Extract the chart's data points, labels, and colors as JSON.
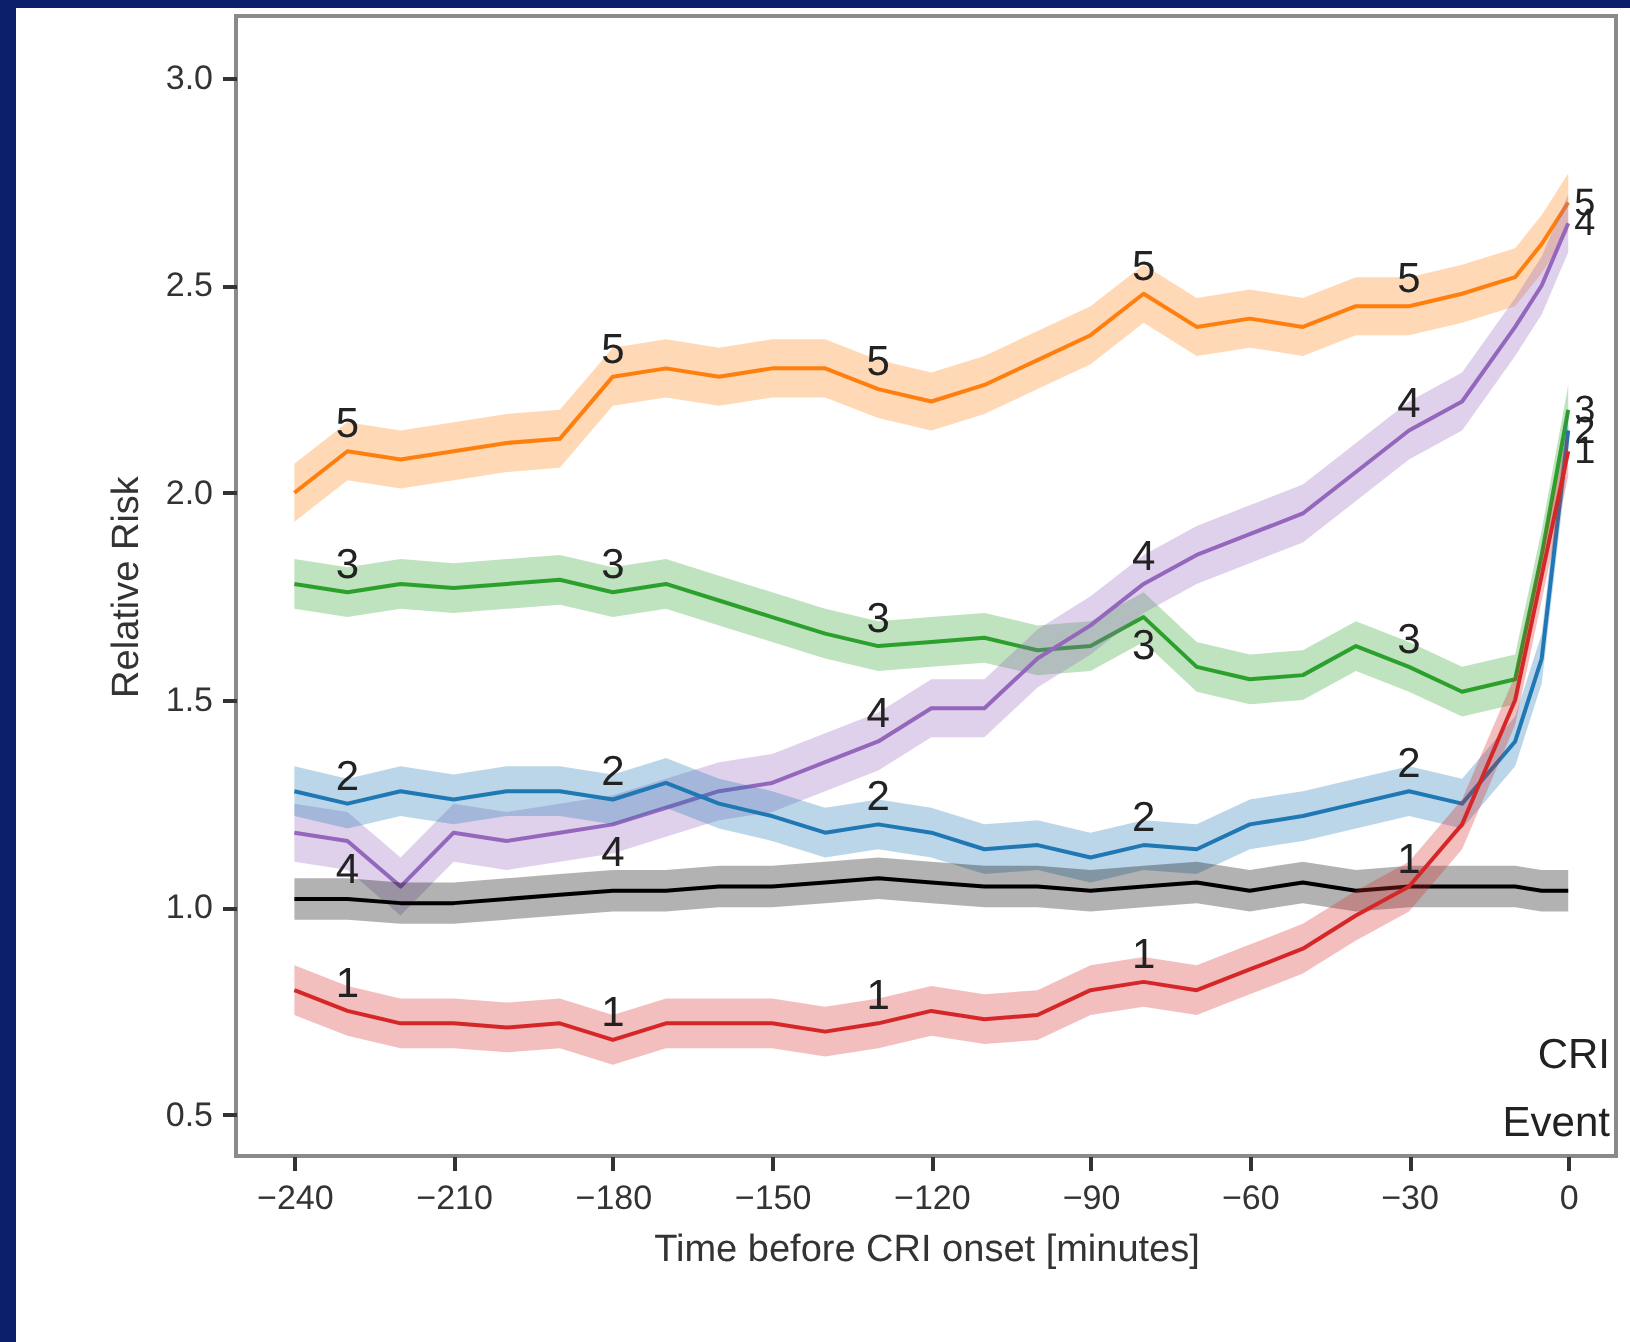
{
  "chart_data": {
    "type": "line",
    "xlabel": "Time before CRI onset [minutes]",
    "ylabel": "Relative Risk",
    "annotations": [
      "CRI Event"
    ],
    "x": [
      -240,
      -230,
      -220,
      -210,
      -200,
      -190,
      -180,
      -170,
      -160,
      -150,
      -140,
      -130,
      -120,
      -110,
      -100,
      -90,
      -80,
      -70,
      -60,
      -50,
      -40,
      -30,
      -20,
      -10,
      -5,
      0
    ],
    "xlim": [
      -251,
      9
    ],
    "xticks": [
      {
        "value": -240,
        "label": "−240"
      },
      {
        "value": -210,
        "label": "−210"
      },
      {
        "value": -180,
        "label": "−180"
      },
      {
        "value": -150,
        "label": "−150"
      },
      {
        "value": -120,
        "label": "−120"
      },
      {
        "value": -90,
        "label": "−90"
      },
      {
        "value": -60,
        "label": "−60"
      },
      {
        "value": -30,
        "label": "−30"
      },
      0
    ],
    "ylim": [
      0.4,
      3.15
    ],
    "yticks": [
      0.5,
      {
        "value": 1,
        "label": "1.0"
      },
      1.5,
      {
        "value": 2,
        "label": "2.0"
      },
      2.5,
      {
        "value": 3,
        "label": "3.0"
      }
    ],
    "grid": false,
    "series": [
      {
        "name": "5",
        "color": "#ff7f0e",
        "values": [
          2.0,
          2.1,
          2.08,
          2.1,
          2.12,
          2.13,
          2.28,
          2.3,
          2.28,
          2.3,
          2.3,
          2.25,
          2.22,
          2.26,
          2.32,
          2.38,
          2.48,
          2.4,
          2.42,
          2.4,
          2.45,
          2.45,
          2.48,
          2.52,
          2.6,
          2.7
        ],
        "lower": [
          1.93,
          2.03,
          2.01,
          2.03,
          2.05,
          2.06,
          2.21,
          2.23,
          2.21,
          2.23,
          2.23,
          2.18,
          2.15,
          2.19,
          2.25,
          2.31,
          2.41,
          2.33,
          2.35,
          2.33,
          2.38,
          2.38,
          2.41,
          2.45,
          2.53,
          2.63
        ],
        "upper": [
          2.07,
          2.17,
          2.15,
          2.17,
          2.19,
          2.2,
          2.35,
          2.37,
          2.35,
          2.37,
          2.37,
          2.32,
          2.29,
          2.33,
          2.39,
          2.45,
          2.55,
          2.47,
          2.49,
          2.47,
          2.52,
          2.52,
          2.55,
          2.59,
          2.67,
          2.77
        ]
      },
      {
        "name": "3",
        "color": "#2ca02c",
        "values": [
          1.78,
          1.76,
          1.78,
          1.77,
          1.78,
          1.79,
          1.76,
          1.78,
          1.74,
          1.7,
          1.66,
          1.63,
          1.64,
          1.65,
          1.62,
          1.63,
          1.7,
          1.58,
          1.55,
          1.56,
          1.63,
          1.58,
          1.52,
          1.55,
          1.85,
          2.2
        ],
        "lower": [
          1.72,
          1.7,
          1.72,
          1.71,
          1.72,
          1.73,
          1.7,
          1.72,
          1.68,
          1.64,
          1.6,
          1.57,
          1.58,
          1.59,
          1.56,
          1.57,
          1.64,
          1.52,
          1.49,
          1.5,
          1.57,
          1.52,
          1.46,
          1.49,
          1.79,
          2.14
        ],
        "upper": [
          1.84,
          1.82,
          1.84,
          1.83,
          1.84,
          1.85,
          1.82,
          1.84,
          1.8,
          1.76,
          1.72,
          1.69,
          1.7,
          1.71,
          1.68,
          1.69,
          1.76,
          1.64,
          1.61,
          1.62,
          1.69,
          1.64,
          1.58,
          1.61,
          1.91,
          2.26
        ]
      },
      {
        "name": "4",
        "color": "#9467bd",
        "values": [
          1.18,
          1.16,
          1.05,
          1.18,
          1.16,
          1.18,
          1.2,
          1.24,
          1.28,
          1.3,
          1.35,
          1.4,
          1.48,
          1.48,
          1.6,
          1.68,
          1.78,
          1.85,
          1.9,
          1.95,
          2.05,
          2.15,
          2.22,
          2.4,
          2.5,
          2.65
        ],
        "lower": [
          1.11,
          1.09,
          0.98,
          1.11,
          1.09,
          1.11,
          1.13,
          1.17,
          1.21,
          1.23,
          1.28,
          1.33,
          1.41,
          1.41,
          1.53,
          1.61,
          1.71,
          1.78,
          1.83,
          1.88,
          1.98,
          2.08,
          2.15,
          2.33,
          2.43,
          2.58
        ],
        "upper": [
          1.25,
          1.23,
          1.12,
          1.25,
          1.23,
          1.25,
          1.27,
          1.31,
          1.35,
          1.37,
          1.42,
          1.47,
          1.55,
          1.55,
          1.67,
          1.75,
          1.85,
          1.92,
          1.97,
          2.02,
          2.12,
          2.22,
          2.29,
          2.47,
          2.57,
          2.72
        ]
      },
      {
        "name": "2",
        "color": "#1f77b4",
        "values": [
          1.28,
          1.25,
          1.28,
          1.26,
          1.28,
          1.28,
          1.26,
          1.3,
          1.25,
          1.22,
          1.18,
          1.2,
          1.18,
          1.14,
          1.15,
          1.12,
          1.15,
          1.14,
          1.2,
          1.22,
          1.25,
          1.28,
          1.25,
          1.4,
          1.6,
          2.15
        ],
        "lower": [
          1.22,
          1.19,
          1.22,
          1.2,
          1.22,
          1.22,
          1.2,
          1.24,
          1.19,
          1.16,
          1.12,
          1.14,
          1.12,
          1.08,
          1.09,
          1.06,
          1.09,
          1.08,
          1.14,
          1.16,
          1.19,
          1.22,
          1.19,
          1.34,
          1.54,
          2.09
        ],
        "upper": [
          1.34,
          1.31,
          1.34,
          1.32,
          1.34,
          1.34,
          1.32,
          1.36,
          1.31,
          1.28,
          1.24,
          1.26,
          1.24,
          1.2,
          1.21,
          1.18,
          1.21,
          1.2,
          1.26,
          1.28,
          1.31,
          1.34,
          1.31,
          1.46,
          1.66,
          2.21
        ]
      },
      {
        "color": "#000000",
        "values": [
          1.02,
          1.02,
          1.01,
          1.01,
          1.02,
          1.03,
          1.04,
          1.04,
          1.05,
          1.05,
          1.06,
          1.07,
          1.06,
          1.05,
          1.05,
          1.04,
          1.05,
          1.06,
          1.04,
          1.06,
          1.04,
          1.05,
          1.05,
          1.05,
          1.04,
          1.04
        ],
        "lower": [
          0.97,
          0.97,
          0.96,
          0.96,
          0.97,
          0.98,
          0.99,
          0.99,
          1.0,
          1.0,
          1.01,
          1.02,
          1.01,
          1.0,
          1.0,
          0.99,
          1.0,
          1.01,
          0.99,
          1.01,
          0.99,
          1.0,
          1.0,
          1.0,
          0.99,
          0.99
        ],
        "upper": [
          1.07,
          1.07,
          1.06,
          1.06,
          1.07,
          1.08,
          1.09,
          1.09,
          1.1,
          1.1,
          1.11,
          1.12,
          1.11,
          1.1,
          1.1,
          1.09,
          1.1,
          1.11,
          1.09,
          1.11,
          1.09,
          1.1,
          1.1,
          1.1,
          1.09,
          1.09
        ]
      },
      {
        "name": "1",
        "color": "#d62728",
        "values": [
          0.8,
          0.75,
          0.72,
          0.72,
          0.71,
          0.72,
          0.68,
          0.72,
          0.72,
          0.72,
          0.7,
          0.72,
          0.75,
          0.73,
          0.74,
          0.8,
          0.82,
          0.8,
          0.85,
          0.9,
          0.98,
          1.05,
          1.2,
          1.5,
          1.8,
          2.1
        ],
        "lower": [
          0.74,
          0.69,
          0.66,
          0.66,
          0.65,
          0.66,
          0.62,
          0.66,
          0.66,
          0.66,
          0.64,
          0.66,
          0.69,
          0.67,
          0.68,
          0.74,
          0.76,
          0.74,
          0.79,
          0.84,
          0.92,
          0.99,
          1.14,
          1.44,
          1.74,
          2.04
        ],
        "upper": [
          0.86,
          0.81,
          0.78,
          0.78,
          0.77,
          0.78,
          0.74,
          0.78,
          0.78,
          0.78,
          0.76,
          0.78,
          0.81,
          0.79,
          0.8,
          0.86,
          0.88,
          0.86,
          0.91,
          0.96,
          1.04,
          1.11,
          1.26,
          1.56,
          1.86,
          2.16
        ]
      }
    ]
  }
}
